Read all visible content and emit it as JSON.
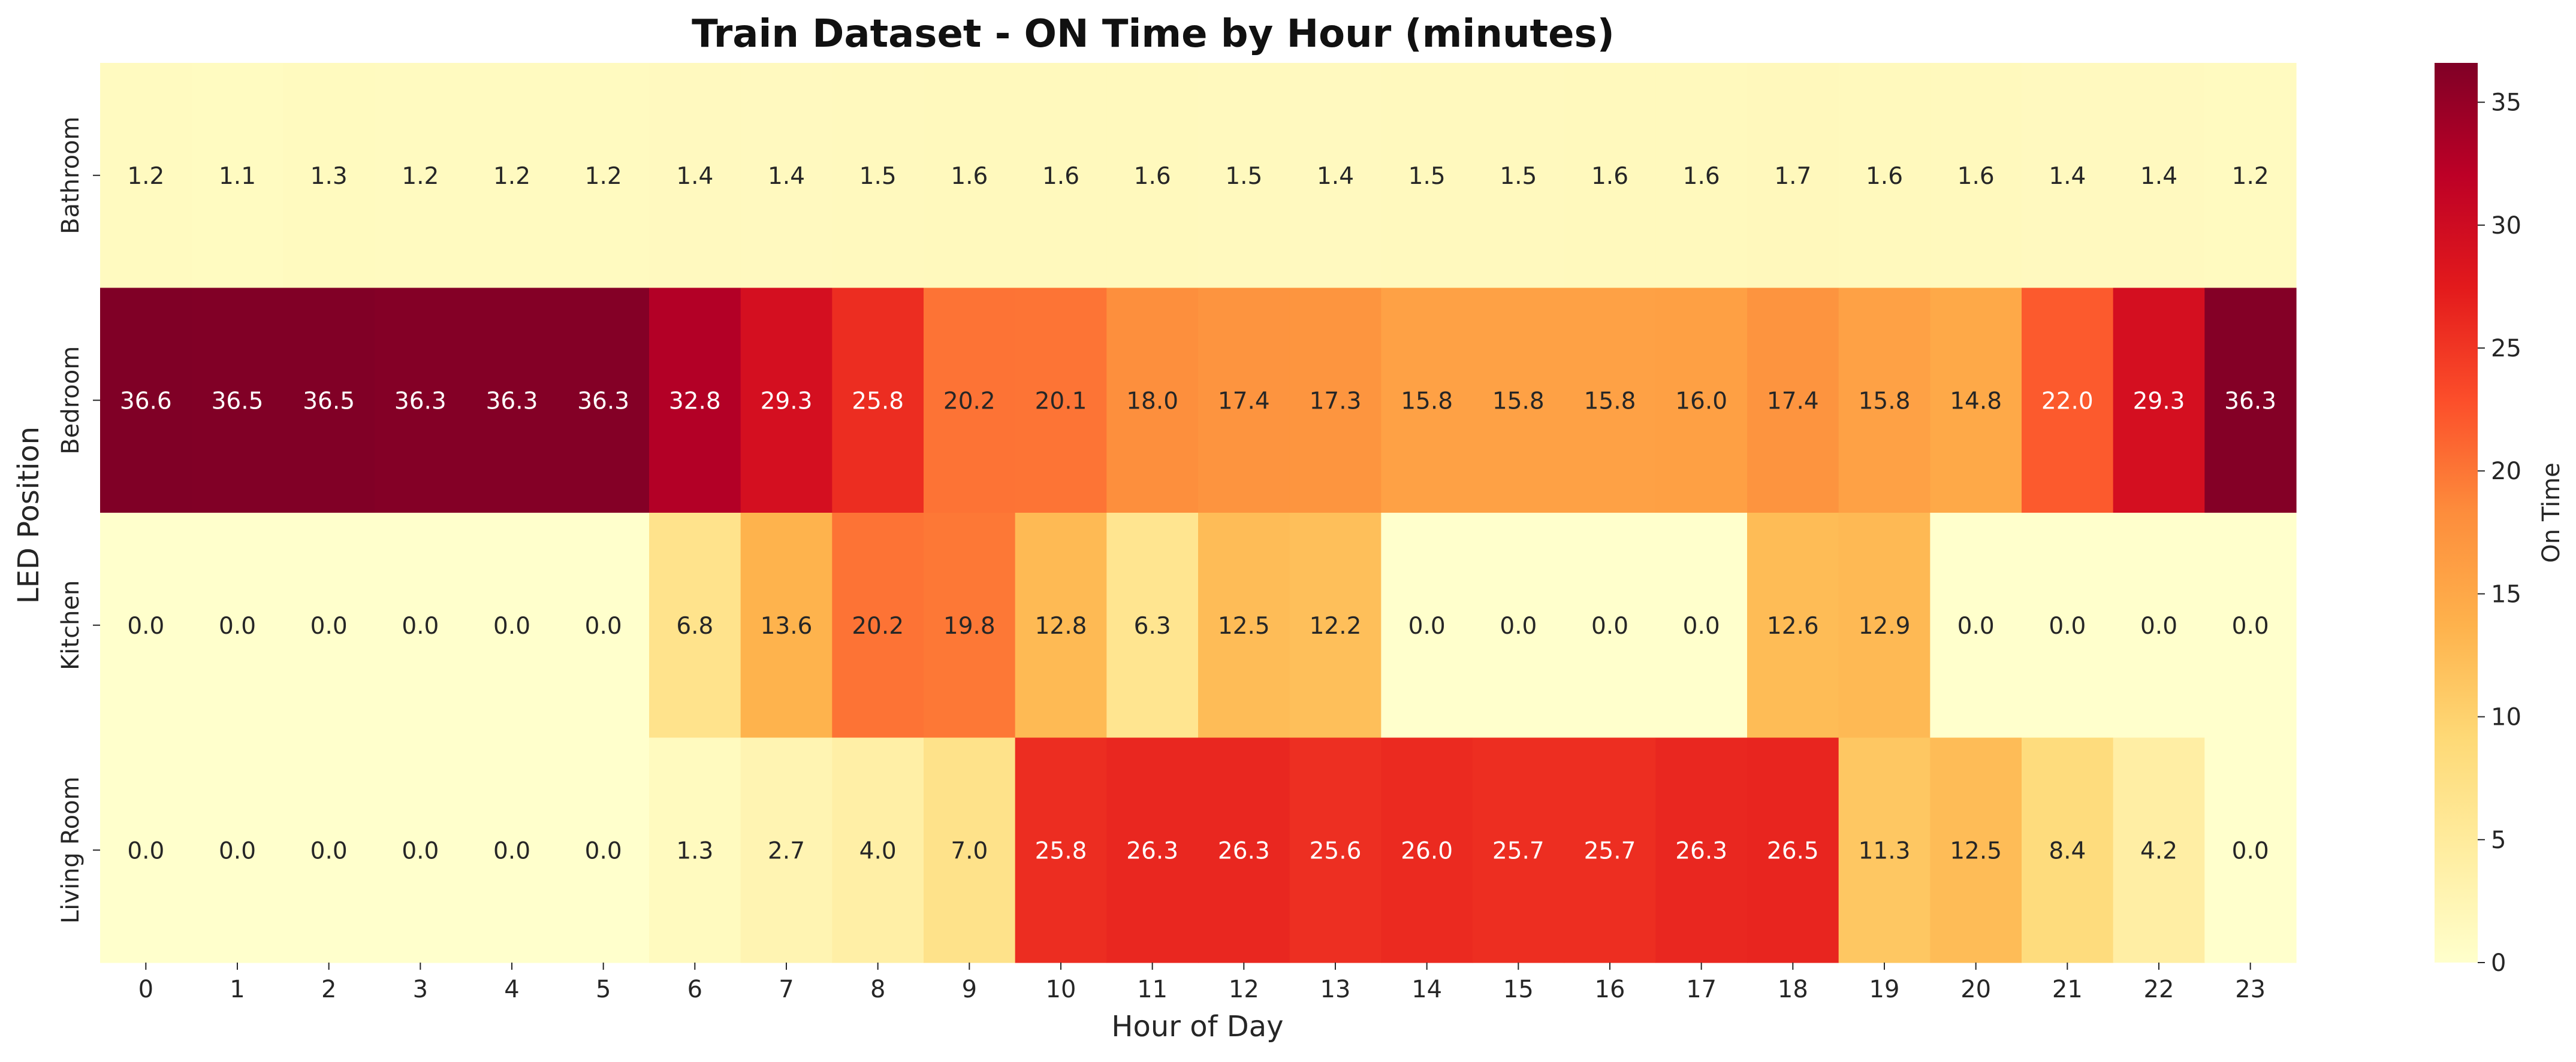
{
  "chart_data": {
    "type": "heatmap",
    "title": "Train Dataset - ON Time by Hour (minutes)",
    "xlabel": "Hour of Day",
    "ylabel": "LED Position",
    "x_categories": [
      "0",
      "1",
      "2",
      "3",
      "4",
      "5",
      "6",
      "7",
      "8",
      "9",
      "10",
      "11",
      "12",
      "13",
      "14",
      "15",
      "16",
      "17",
      "18",
      "19",
      "20",
      "21",
      "22",
      "23"
    ],
    "y_categories": [
      "Bathroom",
      "Bedroom",
      "Kitchen",
      "Living Room"
    ],
    "values": [
      [
        1.2,
        1.1,
        1.3,
        1.2,
        1.2,
        1.2,
        1.4,
        1.4,
        1.5,
        1.6,
        1.6,
        1.6,
        1.5,
        1.4,
        1.5,
        1.5,
        1.6,
        1.6,
        1.7,
        1.6,
        1.6,
        1.4,
        1.4,
        1.2
      ],
      [
        36.6,
        36.5,
        36.5,
        36.3,
        36.3,
        36.3,
        32.8,
        29.3,
        25.8,
        20.2,
        20.1,
        18.0,
        17.4,
        17.3,
        15.8,
        15.8,
        15.8,
        16.0,
        17.4,
        15.8,
        14.8,
        22.0,
        29.3,
        36.3
      ],
      [
        0.0,
        0.0,
        0.0,
        0.0,
        0.0,
        0.0,
        6.8,
        13.6,
        20.2,
        19.8,
        12.8,
        6.3,
        12.5,
        12.2,
        0.0,
        0.0,
        0.0,
        0.0,
        12.6,
        12.9,
        0.0,
        0.0,
        0.0,
        0.0
      ],
      [
        0.0,
        0.0,
        0.0,
        0.0,
        0.0,
        0.0,
        1.3,
        2.7,
        4.0,
        7.0,
        25.8,
        26.3,
        26.3,
        25.6,
        26.0,
        25.7,
        25.7,
        26.3,
        26.5,
        11.3,
        12.5,
        8.4,
        4.2,
        0.0
      ]
    ],
    "value_format": "%.1f",
    "colormap": "YlOrRd",
    "color_range": [
      0,
      36.6
    ],
    "colorbar": {
      "label": "On Time",
      "ticks": [
        "0",
        "5",
        "10",
        "15",
        "20",
        "25",
        "30",
        "35"
      ],
      "tick_values": [
        0,
        5,
        10,
        15,
        20,
        25,
        30,
        35
      ]
    },
    "grid": false,
    "legend": "colorbar-right"
  }
}
